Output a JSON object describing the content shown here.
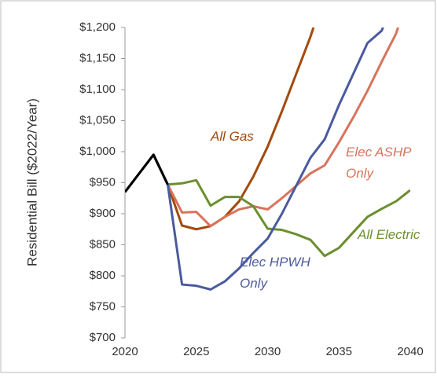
{
  "chart_data": {
    "type": "line",
    "y_label": "Residential Bill ($2022/Year)",
    "x": [
      2020,
      2021,
      2022,
      2023,
      2024,
      2025,
      2026,
      2027,
      2028,
      2029,
      2030,
      2031,
      2032,
      2033,
      2034,
      2035,
      2036,
      2037,
      2038,
      2039,
      2040
    ],
    "series": [
      {
        "label": [
          "All Gas"
        ],
        "color": "#a24a0c",
        "values": [
          935,
          965,
          995,
          947,
          881,
          875,
          880,
          895,
          920,
          960,
          1008,
          1065,
          1125,
          1185,
          1255,
          null,
          null,
          null,
          null,
          null,
          null
        ]
      },
      {
        "label": [
          "Elec ASHP",
          "Only"
        ],
        "color": "#d8735c",
        "values": [
          935,
          965,
          995,
          947,
          902,
          903,
          880,
          895,
          907,
          912,
          907,
          925,
          945,
          965,
          978,
          1015,
          1055,
          1098,
          1145,
          1190,
          1260
        ]
      },
      {
        "label": [
          "All Electric"
        ],
        "color": "#6b8f2f",
        "values": [
          935,
          965,
          995,
          947,
          949,
          954,
          913,
          927,
          927,
          912,
          876,
          874,
          867,
          858,
          832,
          845,
          870,
          895,
          908,
          920,
          938
        ]
      },
      {
        "label": [
          "Elec HPWH",
          "Only"
        ],
        "color": "#4b5a9e",
        "values": [
          935,
          965,
          995,
          947,
          786,
          784,
          778,
          791,
          812,
          837,
          860,
          900,
          945,
          990,
          1020,
          1075,
          1125,
          1175,
          1195,
          1255,
          null
        ]
      },
      {
        "color": "#000000",
        "values": [
          935,
          965,
          995,
          947,
          null,
          null,
          null,
          null,
          null,
          null,
          null,
          null,
          null,
          null,
          null,
          null,
          null,
          null,
          null,
          null,
          null
        ]
      }
    ],
    "xlim": [
      2020,
      2040
    ],
    "xticks": [
      2020,
      2025,
      2030,
      2035,
      2040
    ],
    "ylim": [
      700,
      1200
    ],
    "yticks": [
      {
        "value": 700,
        "label": "$700"
      },
      {
        "value": 750,
        "label": "$750"
      },
      {
        "value": 800,
        "label": "$800"
      },
      {
        "value": 850,
        "label": "$850"
      },
      {
        "value": 900,
        "label": "$900"
      },
      {
        "value": 950,
        "label": "$950"
      },
      {
        "value": 1000,
        "label": "$1,000"
      },
      {
        "value": 1050,
        "label": "$1,050"
      },
      {
        "value": 1100,
        "label": "$1,100"
      },
      {
        "value": 1150,
        "label": "$1,150"
      },
      {
        "value": 1200,
        "label": "$1,200"
      }
    ],
    "grid": false
  }
}
